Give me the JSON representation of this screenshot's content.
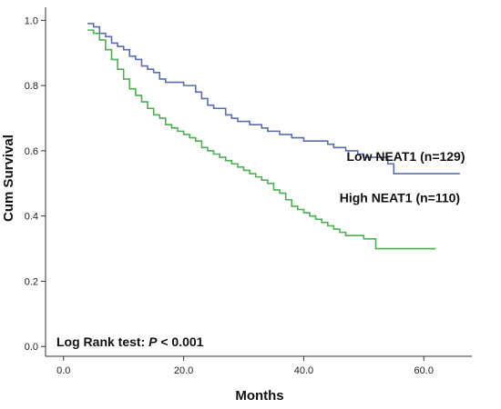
{
  "chart_data": {
    "type": "line",
    "title": "",
    "xlabel": "Months",
    "ylabel": "Cum Survival",
    "xlim": [
      -3,
      68
    ],
    "ylim": [
      -0.03,
      1.04
    ],
    "xticks": [
      0,
      20,
      40,
      60
    ],
    "xtick_labels": [
      "0.0",
      "20.0",
      "40.0",
      "60.0"
    ],
    "yticks": [
      0,
      0.2,
      0.4,
      0.6,
      0.8,
      1.0
    ],
    "ytick_labels": [
      "0.0",
      "0.2",
      "0.4",
      "0.6",
      "0.8",
      "1.0"
    ],
    "grid": false,
    "step": true,
    "annotation": {
      "prefix": "Log Rank test: ",
      "italic": "P",
      "suffix": " < 0.001"
    },
    "series": [
      {
        "name": "Low NEAT1 (n=129)",
        "color": "#5a6cb0",
        "x": [
          4,
          5,
          6,
          7,
          8,
          9,
          10,
          11,
          12,
          13,
          14,
          15,
          16,
          17,
          19,
          20,
          22,
          23,
          24,
          25,
          27,
          28,
          29,
          31,
          33,
          34,
          36,
          38,
          40,
          42,
          44,
          45,
          47,
          49,
          50,
          52,
          54,
          55,
          60,
          66
        ],
        "y": [
          0.99,
          0.98,
          0.96,
          0.95,
          0.93,
          0.92,
          0.91,
          0.89,
          0.88,
          0.86,
          0.85,
          0.84,
          0.82,
          0.81,
          0.81,
          0.8,
          0.78,
          0.76,
          0.74,
          0.73,
          0.71,
          0.7,
          0.69,
          0.68,
          0.67,
          0.66,
          0.65,
          0.64,
          0.63,
          0.63,
          0.62,
          0.61,
          0.6,
          0.59,
          0.58,
          0.58,
          0.56,
          0.53,
          0.53,
          0.53
        ]
      },
      {
        "name": "High NEAT1 (n=110)",
        "color": "#4caf50",
        "x": [
          4,
          5,
          6,
          7,
          8,
          9,
          10,
          11,
          12,
          13,
          14,
          15,
          16,
          17,
          18,
          19,
          20,
          21,
          22,
          23,
          24,
          25,
          26,
          27,
          28,
          29,
          30,
          31,
          32,
          33,
          34,
          35,
          36,
          37,
          38,
          39,
          40,
          41,
          42,
          43,
          44,
          45,
          46,
          47,
          48,
          50,
          52,
          56,
          62
        ],
        "y": [
          0.97,
          0.96,
          0.94,
          0.91,
          0.88,
          0.85,
          0.82,
          0.79,
          0.77,
          0.75,
          0.73,
          0.71,
          0.7,
          0.68,
          0.67,
          0.66,
          0.65,
          0.64,
          0.63,
          0.61,
          0.6,
          0.59,
          0.58,
          0.57,
          0.56,
          0.55,
          0.54,
          0.53,
          0.52,
          0.51,
          0.5,
          0.48,
          0.47,
          0.45,
          0.43,
          0.42,
          0.41,
          0.4,
          0.39,
          0.38,
          0.37,
          0.36,
          0.35,
          0.34,
          0.34,
          0.33,
          0.3,
          0.3,
          0.3
        ]
      }
    ]
  }
}
